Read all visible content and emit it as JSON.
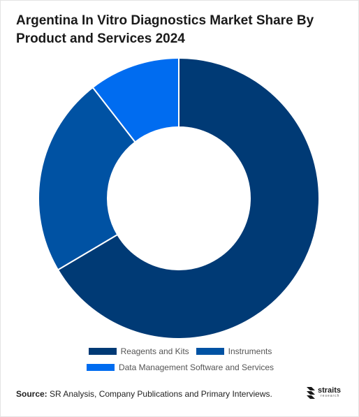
{
  "chart_data": {
    "type": "pie",
    "title": "Argentina In Vitro Diagnostics Market Share By Product and Services 2024",
    "categories": [
      "Reagents and Kits",
      "Instruments",
      "Data Management Software and Services"
    ],
    "values": [
      66.5,
      23.0,
      10.5
    ],
    "unit": "%",
    "colors": [
      "#003a75",
      "#0052a3",
      "#006cf0"
    ],
    "donut": true,
    "legend_position": "bottom"
  },
  "footer": {
    "source_label": "Source:",
    "source_text": " SR Analysis, Company Publications and Primary Interviews.",
    "logo_word": "straits",
    "logo_sub": "research"
  }
}
